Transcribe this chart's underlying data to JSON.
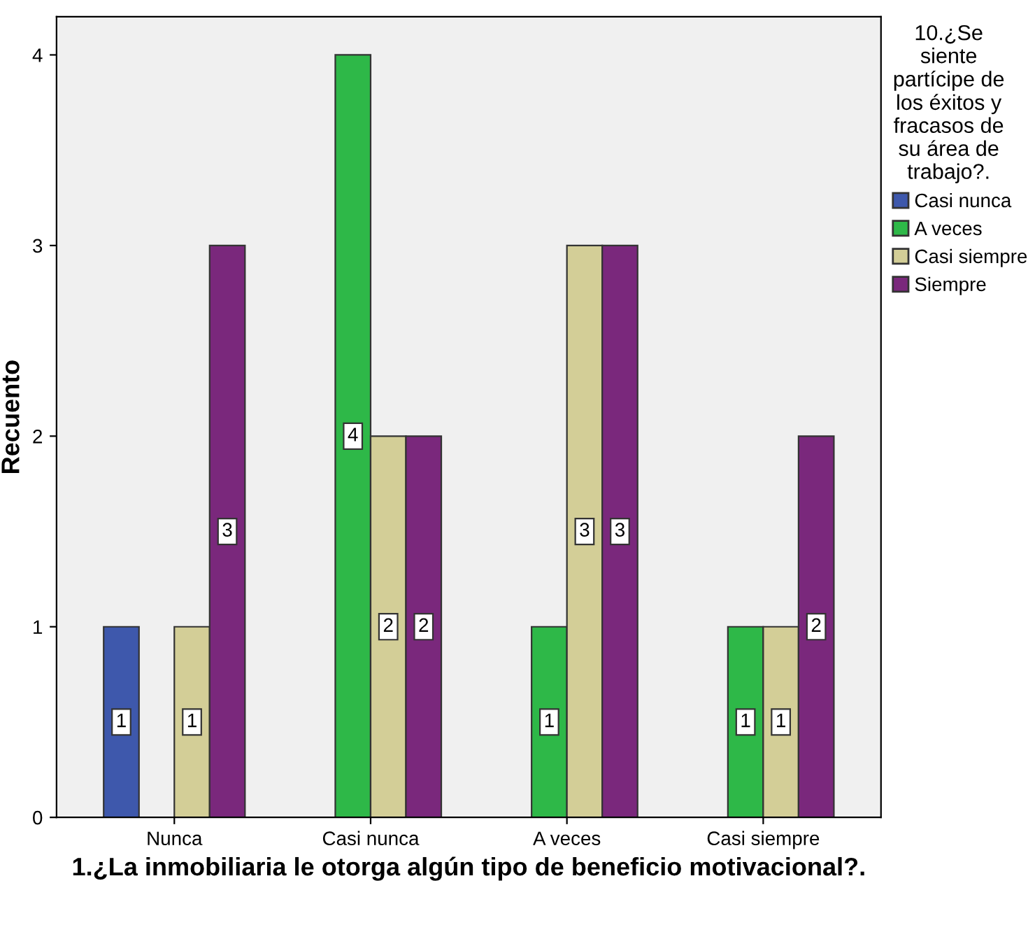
{
  "chart_data": {
    "type": "bar",
    "xlabel": "1.¿La inmobiliaria le otorga algún tipo de beneficio motivacional?.",
    "ylabel": "Recuento",
    "legend_title": "10.¿Se\nsiente\npartícipe de\nlos éxitos y\nfracasos de\nsu área de\ntrabajo?.",
    "categories": [
      "Nunca",
      "Casi nunca",
      "A veces",
      "Casi siempre"
    ],
    "series": [
      {
        "name": "Casi nunca",
        "color": "#3e58ac",
        "values": [
          1,
          null,
          null,
          null
        ]
      },
      {
        "name": "A veces",
        "color": "#2eb848",
        "values": [
          null,
          4,
          1,
          1
        ]
      },
      {
        "name": "Casi siempre",
        "color": "#d3ce97",
        "values": [
          1,
          2,
          3,
          1
        ]
      },
      {
        "name": "Siempre",
        "color": "#7a287c",
        "values": [
          3,
          2,
          3,
          2
        ]
      }
    ],
    "ylim": [
      0,
      4.2
    ],
    "yticks": [
      0,
      1,
      2,
      3,
      4
    ],
    "grid": false,
    "legend": "right",
    "data_labels": true
  }
}
